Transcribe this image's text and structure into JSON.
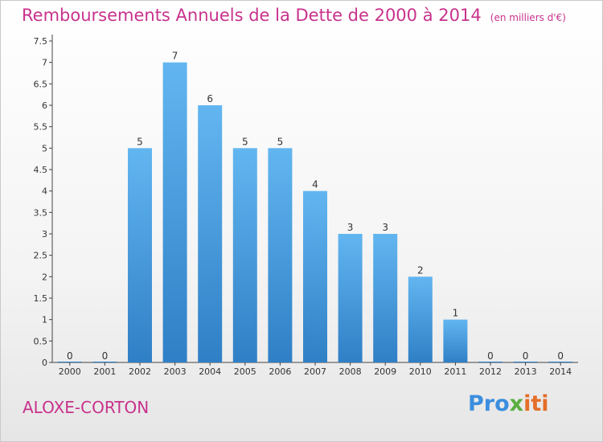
{
  "title": "Remboursements Annuels de la Dette de 2000 à 2014",
  "subtitle": "(en milliers d'€)",
  "commune": "ALOXE-CORTON",
  "logo": {
    "p1": "Pro",
    "p2": "x",
    "p3": "iti"
  },
  "chart_data": {
    "type": "bar",
    "categories": [
      "2000",
      "2001",
      "2002",
      "2003",
      "2004",
      "2005",
      "2006",
      "2007",
      "2008",
      "2009",
      "2010",
      "2011",
      "2012",
      "2013",
      "2014"
    ],
    "values": [
      0,
      0,
      5,
      7,
      6,
      5,
      5,
      4,
      3,
      3,
      2,
      1,
      0,
      0,
      0
    ],
    "yticks": [
      "0",
      "0.5",
      "1",
      "1.5",
      "2",
      "2.5",
      "3",
      "3.5",
      "4",
      "4.5",
      "5",
      "5.5",
      "6",
      "6.5",
      "7",
      "7.5"
    ],
    "ylim": [
      0,
      7.5
    ],
    "xlabel": "",
    "ylabel": "",
    "grid": false,
    "bar_color": "#4aa3e6",
    "title_color": "#c8328c"
  }
}
